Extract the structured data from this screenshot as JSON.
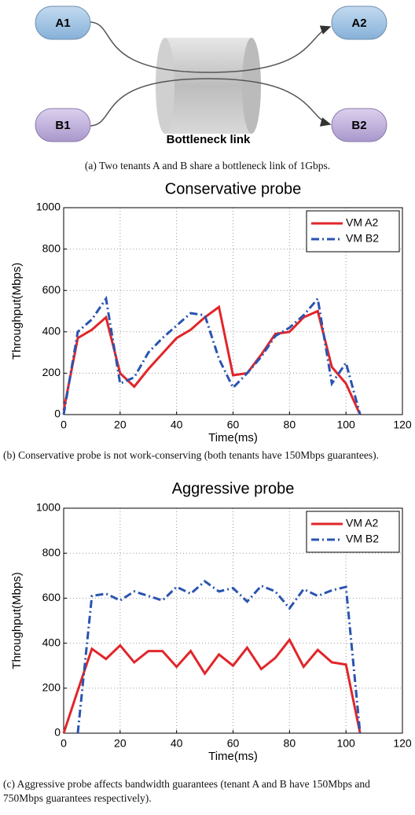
{
  "diagram": {
    "nodes": [
      {
        "label": "A1"
      },
      {
        "label": "A2"
      },
      {
        "label": "B1"
      },
      {
        "label": "B2"
      }
    ],
    "link_label": "Bottleneck link"
  },
  "captions": [
    "(a) Two tenants A and B share a bottleneck link of 1Gbps.",
    "(b) Conservative probe is not work-conserving (both tenants have 150Mbps guarantees).",
    "(c) Aggressive probe affects bandwidth guarantees (tenant A and B have 150Mbps and 750Mbps guarantees respectively)."
  ],
  "chart_data": [
    {
      "type": "line",
      "title": "Conservative probe",
      "x_label": "Time(ms)",
      "y_label": "Throughput(Mbps)",
      "x": [
        0,
        5,
        10,
        15,
        20,
        25,
        30,
        35,
        40,
        45,
        50,
        55,
        60,
        65,
        70,
        75,
        80,
        85,
        90,
        95,
        100,
        105
      ],
      "series": [
        {
          "name": "VM A2",
          "color": "#e0262b",
          "linestyle": "solid",
          "values": [
            20,
            370,
            410,
            470,
            200,
            135,
            220,
            295,
            370,
            410,
            470,
            520,
            190,
            200,
            290,
            390,
            400,
            470,
            500,
            230,
            150,
            0
          ]
        },
        {
          "name": "VM B2",
          "color": "#2a54b0",
          "linestyle": "dashdot",
          "values": [
            0,
            400,
            460,
            560,
            150,
            180,
            300,
            370,
            430,
            490,
            480,
            270,
            130,
            200,
            280,
            380,
            420,
            480,
            560,
            150,
            250,
            0
          ]
        }
      ],
      "xlim": [
        0,
        120
      ],
      "xticks": [
        0,
        20,
        40,
        60,
        80,
        100,
        120
      ],
      "ylim": [
        0,
        1000
      ],
      "yticks": [
        0,
        200,
        400,
        600,
        800,
        1000
      ],
      "grid": true,
      "legend": "upper right"
    },
    {
      "type": "line",
      "title": "Aggressive probe",
      "x_label": "Time(ms)",
      "y_label": "Throughput(Mbps)",
      "x": [
        0,
        5,
        10,
        15,
        20,
        25,
        30,
        35,
        40,
        45,
        50,
        55,
        60,
        65,
        70,
        75,
        80,
        85,
        90,
        95,
        100,
        105
      ],
      "series": [
        {
          "name": "VM A2",
          "color": "#e0262b",
          "linestyle": "solid",
          "values": [
            0,
            190,
            375,
            330,
            390,
            315,
            365,
            365,
            295,
            365,
            265,
            350,
            300,
            380,
            285,
            335,
            415,
            295,
            370,
            315,
            305,
            0
          ]
        },
        {
          "name": "VM B2",
          "color": "#2a54b0",
          "linestyle": "dashdot",
          "values": [
            null,
            0,
            610,
            620,
            590,
            630,
            610,
            590,
            650,
            620,
            675,
            630,
            645,
            585,
            655,
            630,
            555,
            640,
            610,
            635,
            650,
            0
          ]
        }
      ],
      "xlim": [
        0,
        120
      ],
      "xticks": [
        0,
        20,
        40,
        60,
        80,
        100,
        120
      ],
      "ylim": [
        0,
        1000
      ],
      "yticks": [
        0,
        200,
        400,
        600,
        800,
        1000
      ],
      "grid": true,
      "legend": "upper right"
    }
  ]
}
